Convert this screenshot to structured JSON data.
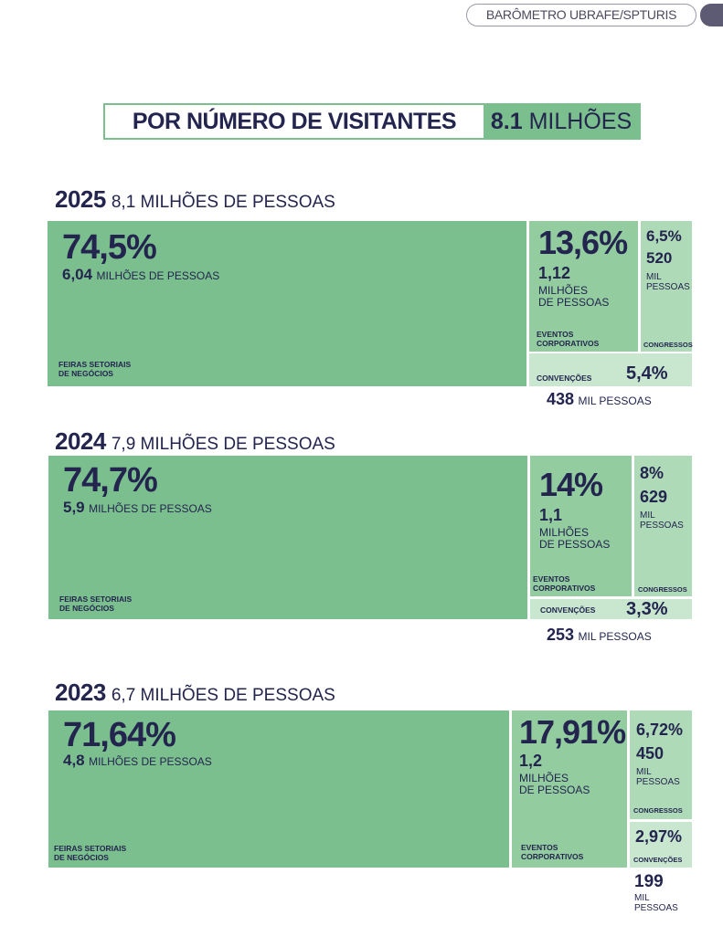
{
  "header": {
    "badge": "BARÔMETRO UBRAFE/SPTURIS"
  },
  "title": {
    "label": "POR NÚMERO DE VISITANTES",
    "value": "8.1",
    "unit": "MILHÕES"
  },
  "colors": {
    "feiras": "#7cbf8e",
    "eventos": "#93cc9f",
    "congressos": "#afdab7",
    "convencoes": "#c9e7cf",
    "text": "#23254f"
  },
  "years": [
    {
      "year": "2025",
      "total": "8,1 MILHÕES DE PESSOAS",
      "feiras": {
        "pct": "74,5%",
        "num": "6,04",
        "unit": "MILHÕES DE PESSOAS",
        "label1": "FEIRAS SETORIAIS",
        "label2": "DE NEGÓCIOS"
      },
      "eventos": {
        "pct": "13,6%",
        "num": "1,12",
        "unit1": "MILHÕES",
        "unit2": "DE PESSOAS",
        "label1": "EVENTOS",
        "label2": "CORPORATIVOS"
      },
      "congressos": {
        "pct": "6,5%",
        "num": "520",
        "unit1": "MIL",
        "unit2": "PESSOAS",
        "label": "CONGRESSOS"
      },
      "convencoes": {
        "pct": "5,4%",
        "num": "438",
        "unit": "MIL PESSOAS",
        "label": "CONVENÇÕES"
      }
    },
    {
      "year": "2024",
      "total": "7,9 MILHÕES DE PESSOAS",
      "feiras": {
        "pct": "74,7%",
        "num": "5,9",
        "unit": "MILHÕES DE PESSOAS",
        "label1": "FEIRAS SETORIAIS",
        "label2": "DE NEGÓCIOS"
      },
      "eventos": {
        "pct": "14%",
        "num": "1,1",
        "unit1": "MILHÕES",
        "unit2": "DE PESSOAS",
        "label1": "EVENTOS",
        "label2": "CORPORATIVOS"
      },
      "congressos": {
        "pct": "8%",
        "num": "629",
        "unit1": "MIL",
        "unit2": "PESSOAS",
        "label": "CONGRESSOS"
      },
      "convencoes": {
        "pct": "3,3%",
        "num": "253",
        "unit": "MIL PESSOAS",
        "label": "CONVENÇÕES"
      }
    },
    {
      "year": "2023",
      "total": "6,7 MILHÕES DE PESSOAS",
      "feiras": {
        "pct": "71,64%",
        "num": "4,8",
        "unit": "MILHÕES DE PESSOAS",
        "label1": "FEIRAS SETORIAIS",
        "label2": "DE NEGÓCIOS"
      },
      "eventos": {
        "pct": "17,91%",
        "num": "1,2",
        "unit1": "MILHÕES",
        "unit2": "DE PESSOAS",
        "label1": "EVENTOS",
        "label2": "CORPORATIVOS"
      },
      "congressos": {
        "pct": "6,72%",
        "num": "450",
        "unit1": "MIL",
        "unit2": "PESSOAS",
        "label": "CONGRESSOS"
      },
      "convencoes": {
        "pct": "2,97%",
        "num": "199",
        "unit1": "MIL",
        "unit2": "PESSOAS",
        "label": "CONVENÇÕES"
      }
    }
  ],
  "chart_data": {
    "type": "treemap",
    "title": "POR NÚMERO DE VISITANTES",
    "categories": [
      "Feiras setoriais de negócios",
      "Eventos corporativos",
      "Congressos",
      "Convenções"
    ],
    "series": [
      {
        "name": "2025",
        "total_millions": 8.1,
        "values_pct": [
          74.5,
          13.6,
          6.5,
          5.4
        ],
        "visitors": [
          6040000,
          1120000,
          520000,
          438000
        ]
      },
      {
        "name": "2024",
        "total_millions": 7.9,
        "values_pct": [
          74.7,
          14,
          8,
          3.3
        ],
        "visitors": [
          5900000,
          1100000,
          629000,
          253000
        ]
      },
      {
        "name": "2023",
        "total_millions": 6.7,
        "values_pct": [
          71.64,
          17.91,
          6.72,
          2.97
        ],
        "visitors": [
          4800000,
          1200000,
          450000,
          199000
        ]
      }
    ]
  }
}
